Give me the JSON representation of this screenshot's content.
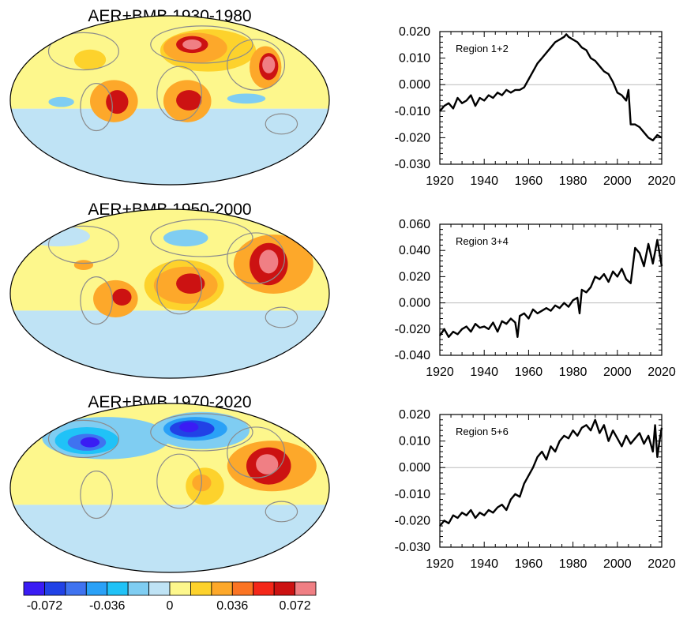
{
  "colors": {
    "scale": [
      "#3a1cf4",
      "#2142e6",
      "#3f73f0",
      "#2aa1f7",
      "#20c2f7",
      "#7fcdf2",
      "#bfe3f5",
      "#fdf78c",
      "#fdd22c",
      "#fda82a",
      "#fb7423",
      "#f42719",
      "#cc1212",
      "#f07f84"
    ],
    "line": "#000000",
    "zero_line": "#bbbbbb",
    "coast": "#8c8c8c"
  },
  "maps": [
    {
      "title": "AER+BMB 1930-1980",
      "pattern": "early"
    },
    {
      "title": "AER+BMB 1950-2000",
      "pattern": "mid"
    },
    {
      "title": "AER+BMB 1970-2020",
      "pattern": "late"
    }
  ],
  "colorbar": {
    "tick_labels": [
      "-0.072",
      "-0.036",
      "0",
      "0.036",
      "0.072"
    ],
    "tick_values": [
      -0.072,
      -0.036,
      0,
      0.036,
      0.072
    ],
    "levels": [
      -0.084,
      -0.072,
      -0.06,
      -0.048,
      -0.036,
      -0.024,
      -0.012,
      0,
      0.012,
      0.024,
      0.036,
      0.048,
      0.06,
      0.072,
      0.084
    ]
  },
  "chart_data": [
    {
      "type": "line",
      "label": "Region 1+2",
      "xlim": [
        1920,
        2020
      ],
      "ylim": [
        -0.03,
        0.02
      ],
      "x_ticks": [
        1920,
        1940,
        1960,
        1980,
        2000,
        2020
      ],
      "y_ticks": [
        -0.03,
        -0.02,
        -0.01,
        0.0,
        0.01,
        0.02
      ],
      "x_tick_labels": [
        "1920",
        "1940",
        "1960",
        "1980",
        "2000",
        "2020"
      ],
      "y_tick_labels": [
        "-0.030",
        "-0.020",
        "-0.010",
        "0.000",
        "0.010",
        "0.020"
      ],
      "x": [
        1920,
        1922,
        1924,
        1926,
        1928,
        1930,
        1932,
        1934,
        1936,
        1938,
        1940,
        1942,
        1944,
        1946,
        1948,
        1950,
        1952,
        1954,
        1956,
        1958,
        1960,
        1962,
        1964,
        1966,
        1968,
        1970,
        1972,
        1974,
        1976,
        1977,
        1978,
        1980,
        1982,
        1984,
        1986,
        1988,
        1990,
        1992,
        1994,
        1996,
        1998,
        2000,
        2002,
        2004,
        2005,
        2006,
        2008,
        2010,
        2012,
        2014,
        2016,
        2018,
        2020
      ],
      "y": [
        -0.01,
        -0.008,
        -0.007,
        -0.009,
        -0.005,
        -0.007,
        -0.006,
        -0.004,
        -0.008,
        -0.005,
        -0.006,
        -0.004,
        -0.005,
        -0.003,
        -0.004,
        -0.002,
        -0.003,
        -0.002,
        -0.002,
        -0.001,
        0.002,
        0.005,
        0.008,
        0.01,
        0.012,
        0.014,
        0.016,
        0.017,
        0.018,
        0.019,
        0.018,
        0.017,
        0.016,
        0.014,
        0.013,
        0.01,
        0.009,
        0.007,
        0.005,
        0.004,
        0.001,
        -0.003,
        -0.004,
        -0.006,
        -0.002,
        -0.015,
        -0.015,
        -0.016,
        -0.018,
        -0.02,
        -0.021,
        -0.019,
        -0.02
      ]
    },
    {
      "type": "line",
      "label": "Region 3+4",
      "xlim": [
        1920,
        2020
      ],
      "ylim": [
        -0.04,
        0.06
      ],
      "x_ticks": [
        1920,
        1940,
        1960,
        1980,
        2000,
        2020
      ],
      "y_ticks": [
        -0.04,
        -0.02,
        0.0,
        0.02,
        0.04,
        0.06
      ],
      "x_tick_labels": [
        "1920",
        "1940",
        "1960",
        "1980",
        "2000",
        "2020"
      ],
      "y_tick_labels": [
        "-0.040",
        "-0.020",
        "0.000",
        "0.020",
        "0.040",
        "0.060"
      ],
      "x": [
        1920,
        1922,
        1924,
        1926,
        1928,
        1930,
        1932,
        1934,
        1936,
        1938,
        1940,
        1942,
        1944,
        1946,
        1948,
        1950,
        1952,
        1954,
        1955,
        1956,
        1958,
        1960,
        1962,
        1964,
        1966,
        1968,
        1970,
        1972,
        1974,
        1976,
        1978,
        1980,
        1982,
        1983,
        1984,
        1986,
        1988,
        1990,
        1992,
        1994,
        1996,
        1998,
        2000,
        2002,
        2004,
        2006,
        2008,
        2010,
        2012,
        2014,
        2016,
        2018,
        2019,
        2020
      ],
      "y": [
        -0.025,
        -0.02,
        -0.026,
        -0.022,
        -0.024,
        -0.02,
        -0.018,
        -0.022,
        -0.016,
        -0.019,
        -0.018,
        -0.02,
        -0.015,
        -0.022,
        -0.014,
        -0.016,
        -0.012,
        -0.015,
        -0.026,
        -0.01,
        -0.008,
        -0.012,
        -0.005,
        -0.008,
        -0.006,
        -0.004,
        -0.006,
        -0.002,
        -0.004,
        0.0,
        -0.003,
        0.002,
        0.004,
        -0.008,
        0.01,
        0.008,
        0.012,
        0.02,
        0.018,
        0.022,
        0.016,
        0.024,
        0.02,
        0.026,
        0.018,
        0.015,
        0.042,
        0.038,
        0.028,
        0.045,
        0.03,
        0.048,
        0.038,
        0.028
      ]
    },
    {
      "type": "line",
      "label": "Region 5+6",
      "xlim": [
        1920,
        2020
      ],
      "ylim": [
        -0.03,
        0.02
      ],
      "x_ticks": [
        1920,
        1940,
        1960,
        1980,
        2000,
        2020
      ],
      "y_ticks": [
        -0.03,
        -0.02,
        -0.01,
        0.0,
        0.01,
        0.02
      ],
      "x_tick_labels": [
        "1920",
        "1940",
        "1960",
        "1980",
        "2000",
        "2020"
      ],
      "y_tick_labels": [
        "-0.030",
        "-0.020",
        "-0.010",
        "0.000",
        "0.010",
        "0.020"
      ],
      "x": [
        1920,
        1922,
        1924,
        1926,
        1928,
        1930,
        1932,
        1934,
        1936,
        1938,
        1940,
        1942,
        1944,
        1946,
        1948,
        1950,
        1952,
        1954,
        1956,
        1958,
        1960,
        1962,
        1964,
        1966,
        1968,
        1970,
        1972,
        1974,
        1976,
        1978,
        1980,
        1982,
        1984,
        1986,
        1988,
        1990,
        1992,
        1994,
        1996,
        1998,
        2000,
        2002,
        2004,
        2006,
        2008,
        2010,
        2012,
        2014,
        2016,
        2017,
        2018,
        2019,
        2020
      ],
      "y": [
        -0.022,
        -0.02,
        -0.021,
        -0.018,
        -0.019,
        -0.017,
        -0.018,
        -0.016,
        -0.019,
        -0.017,
        -0.018,
        -0.016,
        -0.017,
        -0.015,
        -0.014,
        -0.016,
        -0.012,
        -0.01,
        -0.011,
        -0.006,
        -0.003,
        0.0,
        0.004,
        0.006,
        0.003,
        0.008,
        0.006,
        0.01,
        0.012,
        0.011,
        0.014,
        0.012,
        0.015,
        0.016,
        0.014,
        0.018,
        0.013,
        0.016,
        0.01,
        0.014,
        0.011,
        0.008,
        0.012,
        0.009,
        0.011,
        0.013,
        0.009,
        0.012,
        0.006,
        0.016,
        0.004,
        0.01,
        0.015
      ]
    }
  ]
}
